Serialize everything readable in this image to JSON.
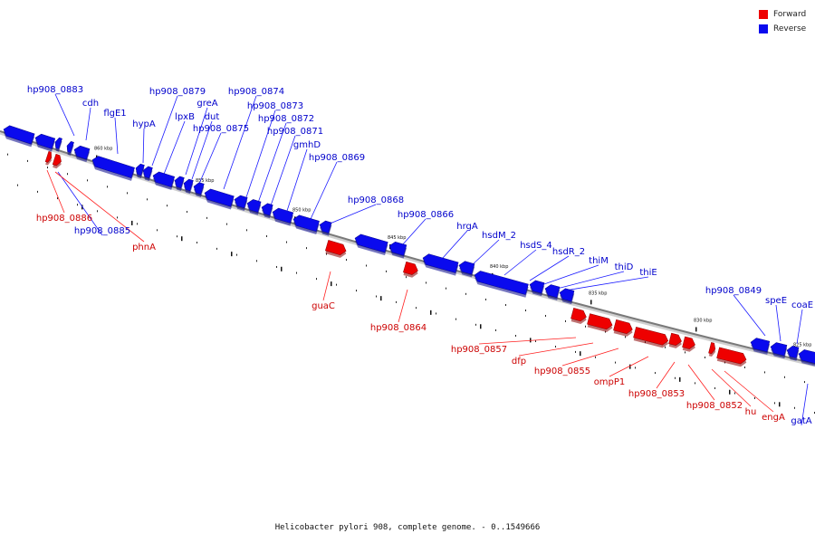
{
  "colors": {
    "forward": "#ee0000",
    "reverse": "#0a0aee",
    "backbone": "#777777",
    "forward_label": "#cc0000",
    "reverse_label": "#0000cc"
  },
  "legend": {
    "forward": "Forward",
    "reverse": "Reverse"
  },
  "caption": "Helicobacter pylori 908, complete genome. - 0..1549666",
  "ticks": [
    "860 kbp",
    "855 kbp",
    "850 kbp",
    "845 kbp",
    "840 kbp",
    "835 kbp",
    "830 kbp",
    "825 kbp"
  ],
  "genes": {
    "reverse": [
      "hp908_0883",
      "cdh",
      "flgE1",
      "hypA",
      "lpxB",
      "hp908_0879",
      "greA",
      "dut",
      "hp908_0875",
      "hp908_0874",
      "hp908_0873",
      "hp908_0872",
      "hp908_0871",
      "gmhD",
      "hp908_0869",
      "hp908_0868",
      "hp908_0866",
      "hrgA",
      "hsdM_2",
      "hsdS_4",
      "hsdR_2",
      "thiM",
      "thiD",
      "thiE",
      "hp908_0849",
      "speE",
      "coaE",
      "gatA",
      "hp908_0885"
    ],
    "forward": [
      "hp908_0886",
      "phnA",
      "guaC",
      "hp908_0864",
      "hp908_0857",
      "dfp",
      "hp908_0855",
      "ompP1",
      "hp908_0853",
      "hp908_0852",
      "hu",
      "engA"
    ]
  }
}
